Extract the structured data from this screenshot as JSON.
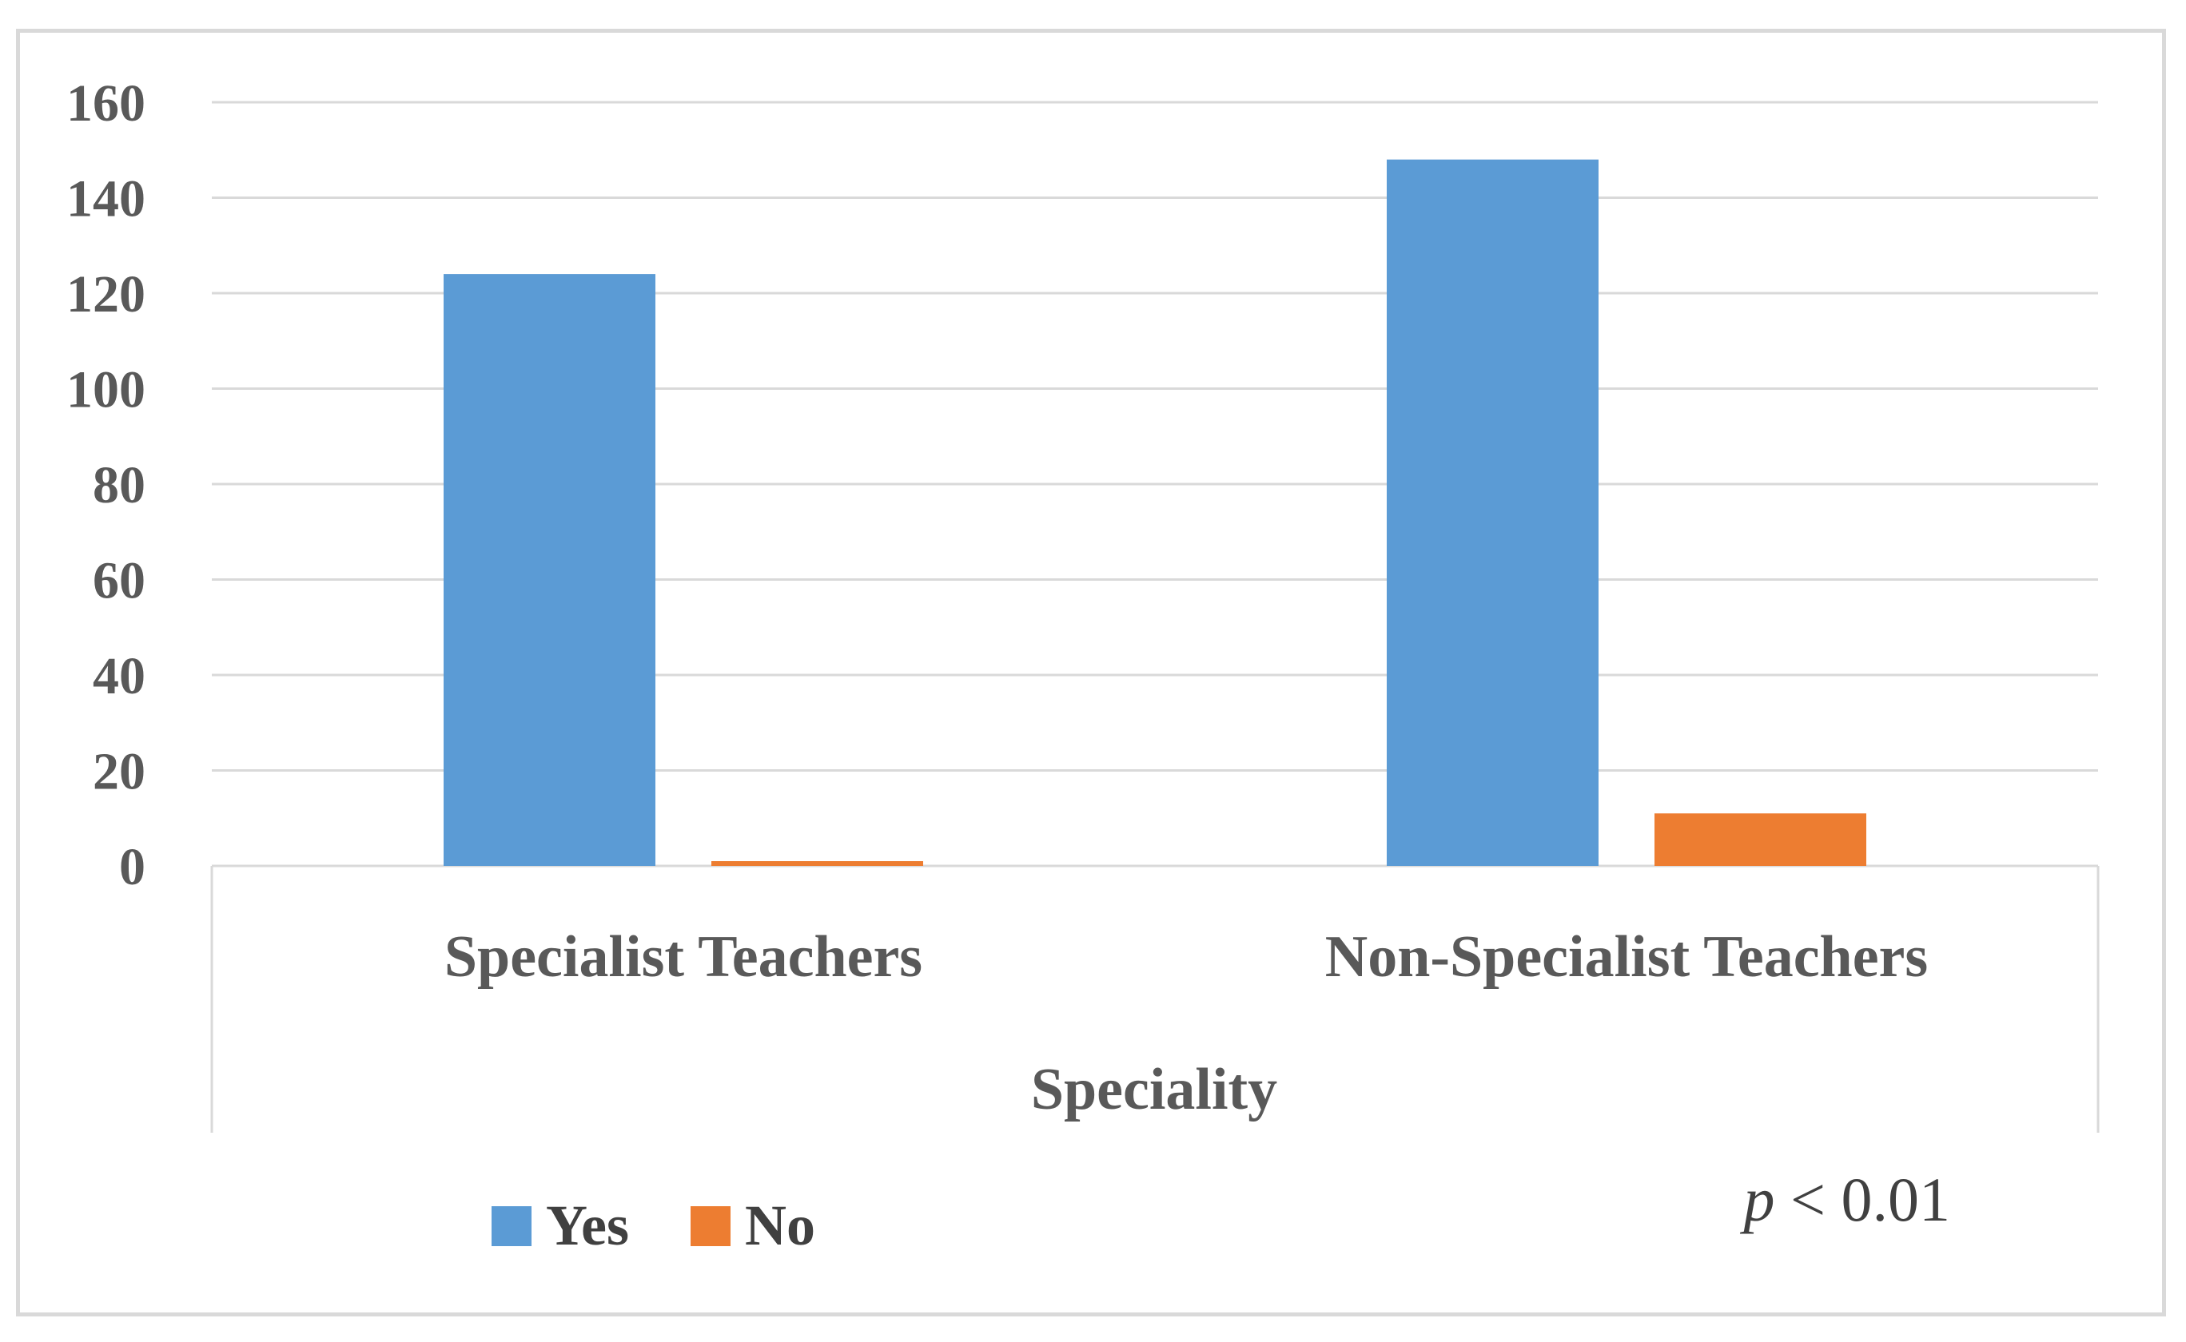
{
  "chart_data": {
    "type": "bar",
    "categories": [
      "Specialist Teachers",
      "Non-Specialist Teachers"
    ],
    "series": [
      {
        "name": "Yes",
        "values": [
          124,
          148
        ],
        "color": "#5b9bd5"
      },
      {
        "name": "No",
        "values": [
          1,
          11
        ],
        "color": "#ed7d31"
      }
    ],
    "title": "",
    "xlabel": "Speciality",
    "ylabel": "",
    "ylim": [
      0,
      160
    ],
    "yticks": [
      0,
      20,
      40,
      60,
      80,
      100,
      120,
      140,
      160
    ],
    "grid": true,
    "legend_position": "bottom-left",
    "annotation": {
      "p": "p",
      "rest": " < 0.01"
    }
  }
}
